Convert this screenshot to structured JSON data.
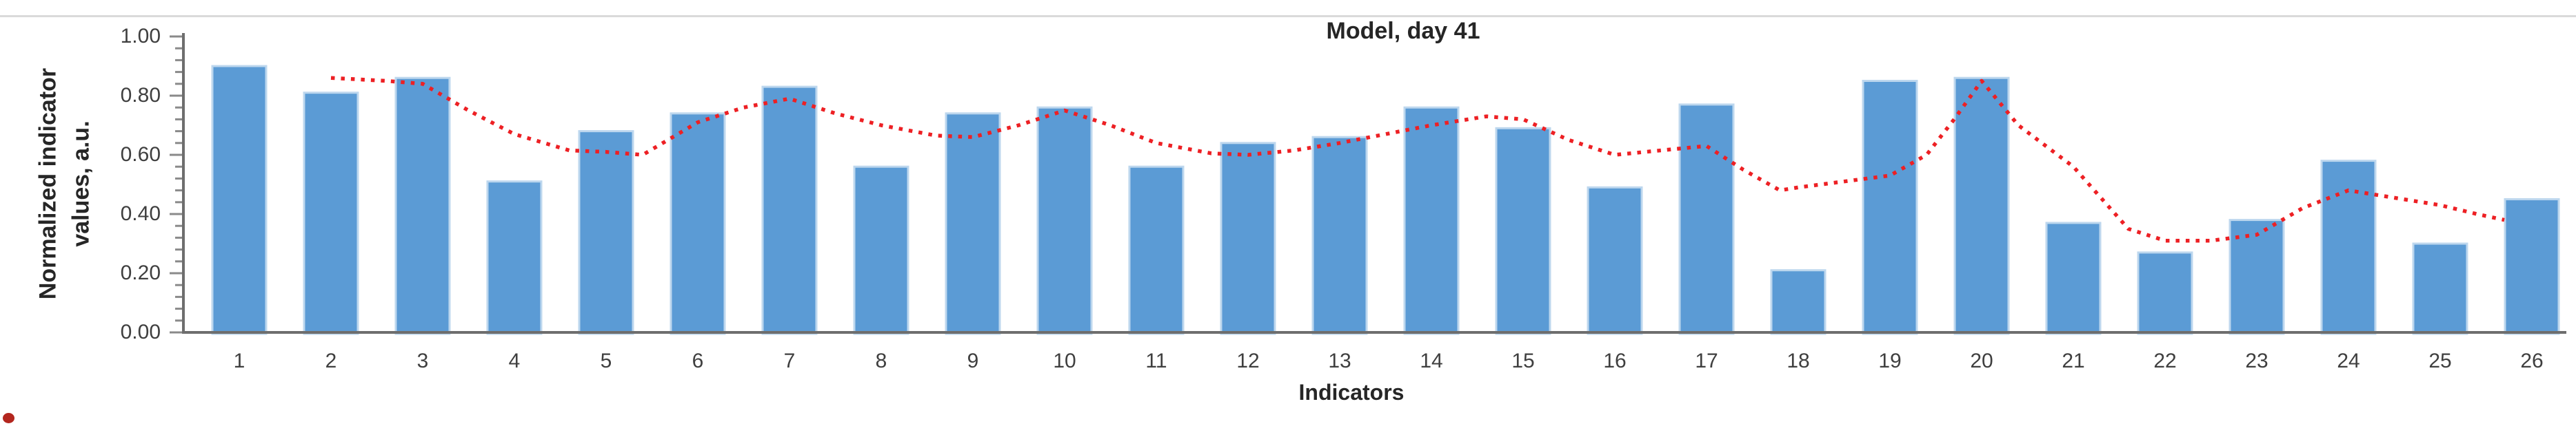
{
  "chart_data": {
    "type": "bar",
    "title": "Model, day 41",
    "xlabel": "Indicators",
    "ylabel_line1": "Normalized indicator",
    "ylabel_line2": "values, a.u.",
    "categories": [
      "1",
      "2",
      "3",
      "4",
      "5",
      "6",
      "7",
      "8",
      "9",
      "10",
      "11",
      "12",
      "13",
      "14",
      "15",
      "16",
      "17",
      "18",
      "19",
      "20",
      "21",
      "22",
      "23",
      "24",
      "25",
      "26"
    ],
    "series": [
      {
        "name": "indicator-bars",
        "type": "bar",
        "color": "#5b9bd5",
        "border_color": "#bdd7ee",
        "values": [
          0.9,
          0.81,
          0.86,
          0.51,
          0.68,
          0.74,
          0.83,
          0.56,
          0.74,
          0.76,
          0.56,
          0.64,
          0.66,
          0.76,
          0.69,
          0.49,
          0.77,
          0.21,
          0.85,
          0.86,
          0.37,
          0.27,
          0.38,
          0.58,
          0.3,
          0.45
        ]
      },
      {
        "name": "model-trend-line",
        "type": "line",
        "style": "dotted",
        "color": "#ed2024",
        "points": [
          [
            2,
            0.86
          ],
          [
            2.6,
            0.85
          ],
          [
            3,
            0.84
          ],
          [
            3.5,
            0.75
          ],
          [
            4,
            0.67
          ],
          [
            4.6,
            0.615
          ],
          [
            5,
            0.61
          ],
          [
            5.4,
            0.6
          ],
          [
            6,
            0.71
          ],
          [
            6.5,
            0.76
          ],
          [
            7,
            0.79
          ],
          [
            7.5,
            0.74
          ],
          [
            8,
            0.7
          ],
          [
            8.6,
            0.665
          ],
          [
            9,
            0.66
          ],
          [
            9.5,
            0.7
          ],
          [
            10,
            0.75
          ],
          [
            10.5,
            0.7
          ],
          [
            11,
            0.64
          ],
          [
            11.6,
            0.605
          ],
          [
            12,
            0.6
          ],
          [
            12.5,
            0.615
          ],
          [
            13,
            0.64
          ],
          [
            13.5,
            0.67
          ],
          [
            14,
            0.7
          ],
          [
            14.6,
            0.73
          ],
          [
            15,
            0.72
          ],
          [
            15.5,
            0.65
          ],
          [
            16,
            0.6
          ],
          [
            16.5,
            0.615
          ],
          [
            17,
            0.63
          ],
          [
            17.4,
            0.55
          ],
          [
            17.8,
            0.48
          ],
          [
            18,
            0.49
          ],
          [
            18.5,
            0.51
          ],
          [
            19,
            0.53
          ],
          [
            19.4,
            0.6
          ],
          [
            19.7,
            0.72
          ],
          [
            20,
            0.85
          ],
          [
            20.4,
            0.7
          ],
          [
            21,
            0.56
          ],
          [
            21.6,
            0.35
          ],
          [
            22,
            0.31
          ],
          [
            22.5,
            0.31
          ],
          [
            23,
            0.33
          ],
          [
            23.5,
            0.42
          ],
          [
            24,
            0.48
          ],
          [
            24.5,
            0.455
          ],
          [
            25,
            0.43
          ],
          [
            25.4,
            0.4
          ],
          [
            25.7,
            0.38
          ]
        ]
      }
    ],
    "y_ticks": [
      "0.00",
      "0.20",
      "0.40",
      "0.60",
      "0.80",
      "1.00"
    ],
    "ylim": [
      0,
      1
    ],
    "minor_tick_interval": 0.04,
    "major_tick_interval": 0.2,
    "grid": false,
    "legend": "none",
    "axis_color": "#6e6e6e",
    "tick_color": "#8a8a8a",
    "text_color": "#3a3a3a"
  },
  "decorations": {
    "top_border_color": "#dadada",
    "corner_mark_color": "#b3261e"
  }
}
